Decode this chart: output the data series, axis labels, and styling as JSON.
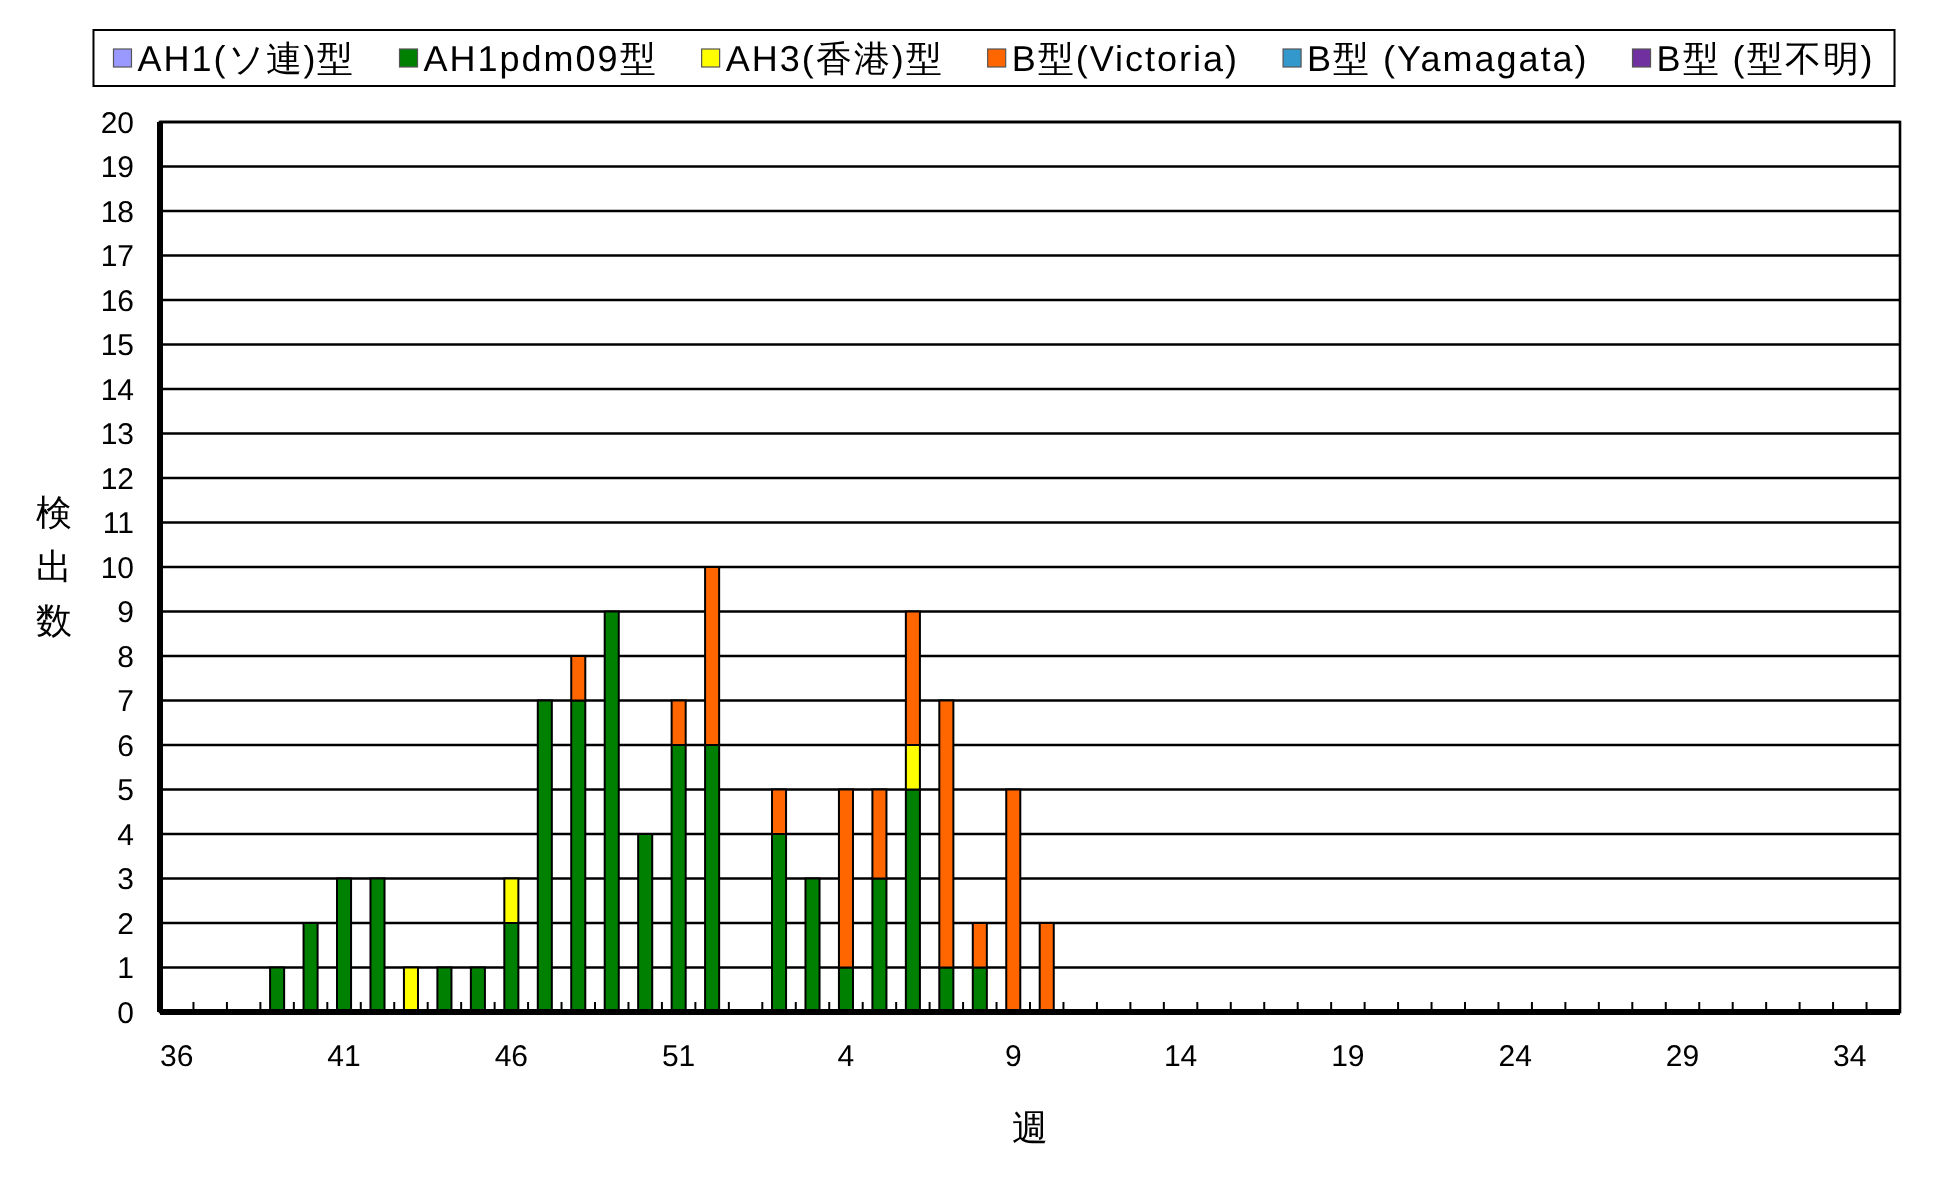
{
  "chart_data": {
    "type": "bar",
    "stacked": true,
    "xlabel": "週",
    "ylabel": "検出数",
    "categories": [
      "36",
      null,
      null,
      null,
      null,
      "41",
      null,
      null,
      null,
      null,
      "46",
      null,
      null,
      null,
      null,
      "51",
      null,
      null,
      null,
      null,
      "4",
      null,
      null,
      null,
      null,
      "9",
      null,
      null,
      null,
      null,
      "14",
      null,
      null,
      null,
      null,
      "19",
      null,
      null,
      null,
      null,
      "24",
      null,
      null,
      null,
      null,
      "29",
      null,
      null,
      null,
      null,
      "34",
      null
    ],
    "series": [
      {
        "name": "AH1(ソ連)型",
        "color": "#9999ff",
        "values": [
          0,
          0,
          0,
          0,
          0,
          0,
          0,
          0,
          0,
          0,
          0,
          0,
          0,
          0,
          0,
          0,
          0,
          0,
          0,
          0,
          0,
          0,
          0,
          0,
          0,
          0,
          0,
          0,
          0,
          0,
          0,
          0,
          0,
          0,
          0,
          0,
          0,
          0,
          0,
          0,
          0,
          0,
          0,
          0,
          0,
          0,
          0,
          0,
          0,
          0,
          0,
          0
        ]
      },
      {
        "name": "AH1pdm09型",
        "color": "#008000",
        "values": [
          0,
          0,
          0,
          1,
          2,
          3,
          3,
          0,
          1,
          1,
          2,
          7,
          7,
          9,
          4,
          6,
          6,
          0,
          4,
          3,
          1,
          3,
          5,
          1,
          1,
          0,
          0,
          0,
          0,
          0,
          0,
          0,
          0,
          0,
          0,
          0,
          0,
          0,
          0,
          0,
          0,
          0,
          0,
          0,
          0,
          0,
          0,
          0,
          0,
          0,
          0,
          0
        ]
      },
      {
        "name": "AH3(香港)型",
        "color": "#ffff00",
        "values": [
          0,
          0,
          0,
          0,
          0,
          0,
          0,
          1,
          0,
          0,
          1,
          0,
          0,
          0,
          0,
          0,
          0,
          0,
          0,
          0,
          0,
          0,
          1,
          0,
          0,
          0,
          0,
          0,
          0,
          0,
          0,
          0,
          0,
          0,
          0,
          0,
          0,
          0,
          0,
          0,
          0,
          0,
          0,
          0,
          0,
          0,
          0,
          0,
          0,
          0,
          0,
          0
        ]
      },
      {
        "name": "B型(Victoria)",
        "color": "#ff6600",
        "values": [
          0,
          0,
          0,
          0,
          0,
          0,
          0,
          0,
          0,
          0,
          0,
          0,
          1,
          0,
          0,
          1,
          4,
          0,
          1,
          0,
          4,
          2,
          3,
          6,
          1,
          5,
          2,
          0,
          0,
          0,
          0,
          0,
          0,
          0,
          0,
          0,
          0,
          0,
          0,
          0,
          0,
          0,
          0,
          0,
          0,
          0,
          0,
          0,
          0,
          0,
          0,
          0
        ]
      },
      {
        "name": "B型 (Yamagata)",
        "color": "#3399cc",
        "values": [
          0,
          0,
          0,
          0,
          0,
          0,
          0,
          0,
          0,
          0,
          0,
          0,
          0,
          0,
          0,
          0,
          0,
          0,
          0,
          0,
          0,
          0,
          0,
          0,
          0,
          0,
          0,
          0,
          0,
          0,
          0,
          0,
          0,
          0,
          0,
          0,
          0,
          0,
          0,
          0,
          0,
          0,
          0,
          0,
          0,
          0,
          0,
          0,
          0,
          0,
          0,
          0
        ]
      },
      {
        "name": "B型 (型不明)",
        "color": "#7030a0",
        "values": [
          0,
          0,
          0,
          0,
          0,
          0,
          0,
          0,
          0,
          0,
          0,
          0,
          0,
          0,
          0,
          0,
          0,
          0,
          0,
          0,
          0,
          0,
          0,
          0,
          0,
          0,
          0,
          0,
          0,
          0,
          0,
          0,
          0,
          0,
          0,
          0,
          0,
          0,
          0,
          0,
          0,
          0,
          0,
          0,
          0,
          0,
          0,
          0,
          0,
          0,
          0,
          0
        ]
      }
    ],
    "ylim": [
      0,
      20
    ],
    "yticks": [
      0,
      1,
      2,
      3,
      4,
      5,
      6,
      7,
      8,
      9,
      10,
      11,
      12,
      13,
      14,
      15,
      16,
      17,
      18,
      19,
      20
    ],
    "grid": "y",
    "legend": "top"
  }
}
